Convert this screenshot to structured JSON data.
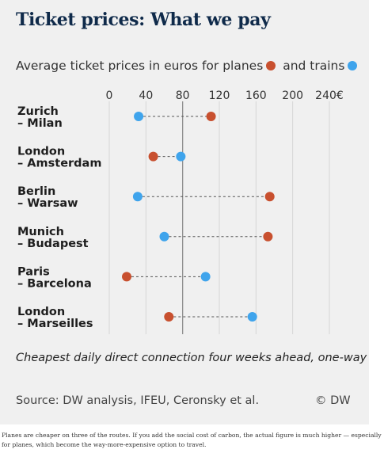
{
  "title": "Ticket prices: What we pay",
  "subtitle_prefix": "Average ticket prices in euros for planes",
  "subtitle_mid": "and trains",
  "note": "Cheapest daily direct connection four weeks ahead, one-way",
  "source": "Source: DW analysis, IFEU, Ceronsky et al.",
  "credit": "© DW",
  "caption": "Planes are cheaper on three of the routes. If you add the social cost of carbon, the actual figure is much higher — especially for planes, which become the way-more-expensive option to travel.",
  "colors": {
    "plane": "#c8502f",
    "train": "#3fa4ec",
    "background": "#f0f0f0",
    "grid": "#d6d6d6",
    "highlight_grid": "#8e8e8e"
  },
  "chart_data": {
    "type": "dot-plot",
    "title": "Ticket prices: What we pay",
    "xlim": [
      0,
      240
    ],
    "ticks": [
      0,
      40,
      80,
      120,
      160,
      200,
      240
    ],
    "tick_labels": [
      "0",
      "40",
      "80",
      "120",
      "160",
      "200",
      "240€"
    ],
    "grid": true,
    "highlight_tick": 80,
    "legend": "inline in subtitle",
    "series": [
      {
        "name": "planes",
        "color": "#c8502f"
      },
      {
        "name": "trains",
        "color": "#3fa4ec"
      }
    ],
    "routes": [
      {
        "line1": "Zurich",
        "line2": "– Milan",
        "plane": 111,
        "train": 32
      },
      {
        "line1": "London",
        "line2": "– Amsterdam",
        "plane": 48,
        "train": 78
      },
      {
        "line1": "Berlin",
        "line2": "– Warsaw",
        "plane": 175,
        "train": 31
      },
      {
        "line1": "Munich",
        "line2": "– Budapest",
        "plane": 173,
        "train": 60
      },
      {
        "line1": "Paris",
        "line2": "– Barcelona",
        "plane": 19,
        "train": 105
      },
      {
        "line1": "London",
        "line2": "– Marseilles",
        "plane": 65,
        "train": 156
      }
    ]
  }
}
